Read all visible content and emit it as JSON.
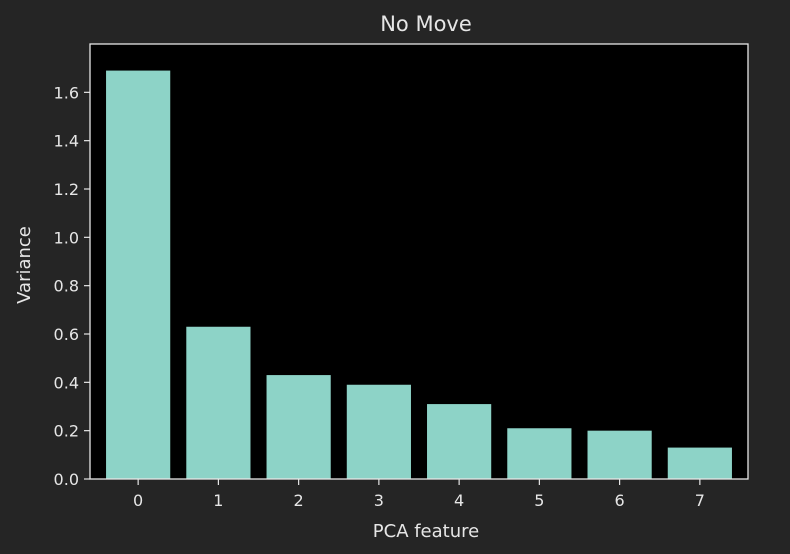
{
  "chart_data": {
    "type": "bar",
    "title": "No Move",
    "xlabel": "PCA feature",
    "ylabel": "Variance",
    "categories": [
      "0",
      "1",
      "2",
      "3",
      "4",
      "5",
      "6",
      "7"
    ],
    "values": [
      1.69,
      0.63,
      0.43,
      0.39,
      0.31,
      0.21,
      0.2,
      0.13
    ],
    "ylim": [
      0,
      1.8
    ],
    "yticks": [
      "0.0",
      "0.2",
      "0.4",
      "0.6",
      "0.8",
      "1.0",
      "1.2",
      "1.4",
      "1.6"
    ],
    "grid": false,
    "colors": {
      "page_background": "#252525",
      "plot_background": "#000000",
      "bar": "#8dd3c7",
      "axis": "#e6e6e6",
      "text": "#e6e6e6"
    }
  }
}
